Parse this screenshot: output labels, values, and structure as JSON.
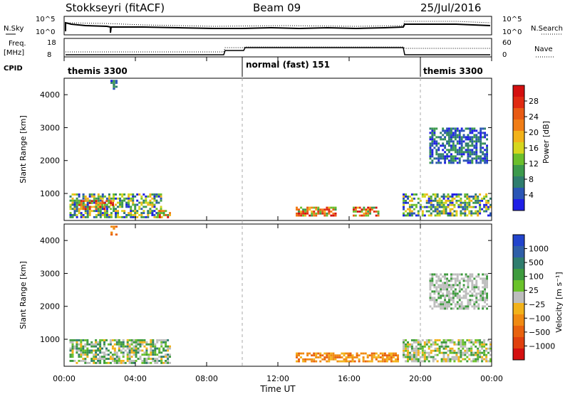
{
  "header": {
    "station": "Stokkseyri (fitACF)",
    "beam": "Beam 09",
    "date": "25/Jul/2016"
  },
  "summary_panel": {
    "left_labels": [
      "N.Sky",
      "Freq.",
      "[MHz]",
      "CPID"
    ],
    "right_labels": [
      "N.Search",
      "Nave"
    ],
    "nsky_ticks": [
      "10^5",
      "10^0"
    ],
    "nsearch_ticks": [
      "10^5",
      "10^0"
    ],
    "freq_ticks": [
      "18",
      "8"
    ],
    "nave_ticks": [
      "60",
      "0"
    ],
    "cpid_segments": [
      {
        "label": "themis 3300",
        "start_h": 0.0,
        "end_h": 10.0
      },
      {
        "label": "normal (fast) 151",
        "start_h": 10.0,
        "end_h": 20.0
      },
      {
        "label": "themis 3300",
        "start_h": 20.0,
        "end_h": 24.0
      }
    ]
  },
  "chart_data": [
    {
      "type": "heatmap",
      "panel": "power",
      "ylabel": "Slant Range [km]",
      "ylim": [
        180,
        4500
      ],
      "yticks": [
        1000,
        2000,
        3000,
        4000
      ],
      "xlim_hours": [
        0,
        24
      ],
      "colorbar_label": "Power [dB]",
      "colorbar_ticks": [
        "4",
        "8",
        "12",
        "16",
        "20",
        "24",
        "28"
      ],
      "colorbar_colors": [
        "#1f1fe6",
        "#2a55b5",
        "#2f7d6e",
        "#3c9a4c",
        "#6bbf2c",
        "#d6d61e",
        "#f2b21a",
        "#f07d16",
        "#e85a14",
        "#e02a12",
        "#d40f0f"
      ],
      "echo_regions": [
        {
          "t": [
            0.3,
            5.5
          ],
          "r": [
            250,
            1000
          ],
          "level": "mixed"
        },
        {
          "t": [
            0.8,
            2.8
          ],
          "r": [
            500,
            800
          ],
          "level": "strong"
        },
        {
          "t": [
            5.2,
            6.0
          ],
          "r": [
            250,
            500
          ],
          "level": "strong"
        },
        {
          "t": [
            13.0,
            15.3
          ],
          "r": [
            300,
            600
          ],
          "level": "strong"
        },
        {
          "t": [
            16.2,
            17.7
          ],
          "r": [
            300,
            600
          ],
          "level": "strong"
        },
        {
          "t": [
            19.0,
            24.0
          ],
          "r": [
            300,
            1000
          ],
          "level": "mixed"
        },
        {
          "t": [
            20.5,
            23.8
          ],
          "r": [
            1900,
            3000
          ],
          "level": "weak"
        },
        {
          "t": [
            2.6,
            3.0
          ],
          "r": [
            4150,
            4450
          ],
          "level": "weak"
        }
      ]
    },
    {
      "type": "heatmap",
      "panel": "velocity",
      "ylabel": "Slant Range [km]",
      "ylim": [
        180,
        4500
      ],
      "yticks": [
        1000,
        2000,
        3000,
        4000
      ],
      "xlim_hours": [
        0,
        24
      ],
      "colorbar_label": "Velocity [m s⁻¹]",
      "colorbar_ticks": [
        "1000",
        "500",
        "100",
        "25",
        "−25",
        "−100",
        "−500",
        "−1000"
      ],
      "colorbar_colors": [
        "#2244cc",
        "#2f5fa8",
        "#2f7d6e",
        "#3e9b3e",
        "#6ac22a",
        "#bdbdbd",
        "#f2b21a",
        "#f08a12",
        "#e8620e",
        "#e0400e",
        "#d41010"
      ],
      "echo_regions": [
        {
          "t": [
            0.3,
            6.0
          ],
          "r": [
            250,
            1000
          ],
          "level": "mixed-green-grey"
        },
        {
          "t": [
            13.0,
            18.8
          ],
          "r": [
            300,
            600
          ],
          "level": "orange"
        },
        {
          "t": [
            19.0,
            24.0
          ],
          "r": [
            300,
            1000
          ],
          "level": "grey-green"
        },
        {
          "t": [
            20.5,
            23.8
          ],
          "r": [
            1900,
            3000
          ],
          "level": "grey"
        },
        {
          "t": [
            2.6,
            3.0
          ],
          "r": [
            4150,
            4450
          ],
          "level": "orange"
        }
      ]
    }
  ],
  "x_axis": {
    "title": "Time UT",
    "tick_labels": [
      "00:00",
      "04:00",
      "08:00",
      "12:00",
      "16:00",
      "20:00",
      "00:00"
    ]
  }
}
